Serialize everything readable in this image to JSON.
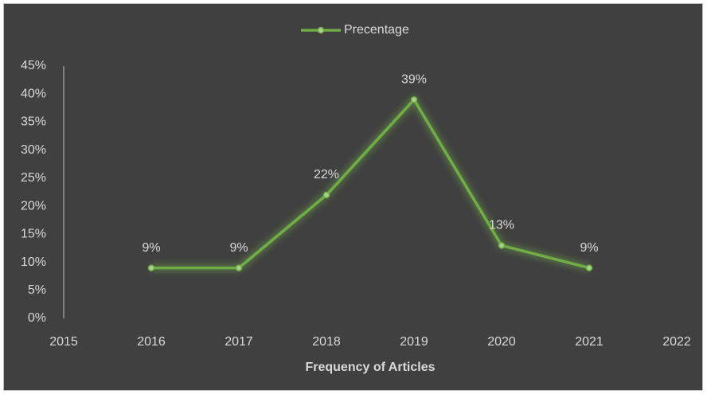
{
  "chart_data": {
    "type": "line",
    "legend": "top",
    "x_label": "Frequency of Articles",
    "x": [
      2016,
      2017,
      2018,
      2019,
      2020,
      2021
    ],
    "xlim": [
      2015,
      2022
    ],
    "xticks": [
      2015,
      2016,
      2017,
      2018,
      2019,
      2020,
      2021,
      2022
    ],
    "ylim": [
      0,
      45
    ],
    "yticks": [
      {
        "value": 0,
        "label": "0%"
      },
      {
        "value": 5,
        "label": "5%"
      },
      {
        "value": 10,
        "label": "10%"
      },
      {
        "value": 15,
        "label": "15%"
      },
      {
        "value": 20,
        "label": "20%"
      },
      {
        "value": 25,
        "label": "25%"
      },
      {
        "value": 30,
        "label": "30%"
      },
      {
        "value": 35,
        "label": "35%"
      },
      {
        "value": 40,
        "label": "40%"
      },
      {
        "value": 45,
        "label": "45%"
      }
    ],
    "grid": false,
    "series": [
      {
        "name": "Precentage",
        "color": "#70ad47",
        "values": [
          9,
          9,
          22,
          39,
          13,
          9
        ],
        "value_labels": [
          "9%",
          "9%",
          "22%",
          "39%",
          "13%",
          "9%"
        ]
      }
    ]
  }
}
